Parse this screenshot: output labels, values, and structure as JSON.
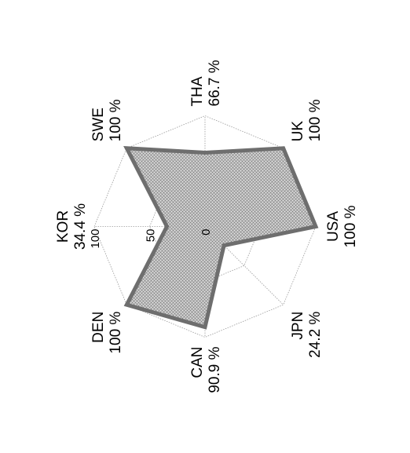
{
  "chart_data": {
    "type": "radar",
    "rmax": 100,
    "ticks": [
      "0",
      "50",
      "100"
    ],
    "categories": [
      "KOR",
      "SWE",
      "THA",
      "UK",
      "USA",
      "JPN",
      "CAN",
      "DEN"
    ],
    "values": [
      34.4,
      100,
      66.7,
      100,
      100,
      24.2,
      90.9,
      100
    ],
    "value_labels": [
      "34.4 %",
      "100 %",
      "66.7 %",
      "100 %",
      "100 %",
      "24.2 %",
      "90.9 %",
      "100 %"
    ],
    "fill": "#c9c9c9",
    "stroke": "#6e6e6e",
    "grid_color": "#9a9a9a",
    "orientation": "rotated 90° counter-clockwise"
  }
}
